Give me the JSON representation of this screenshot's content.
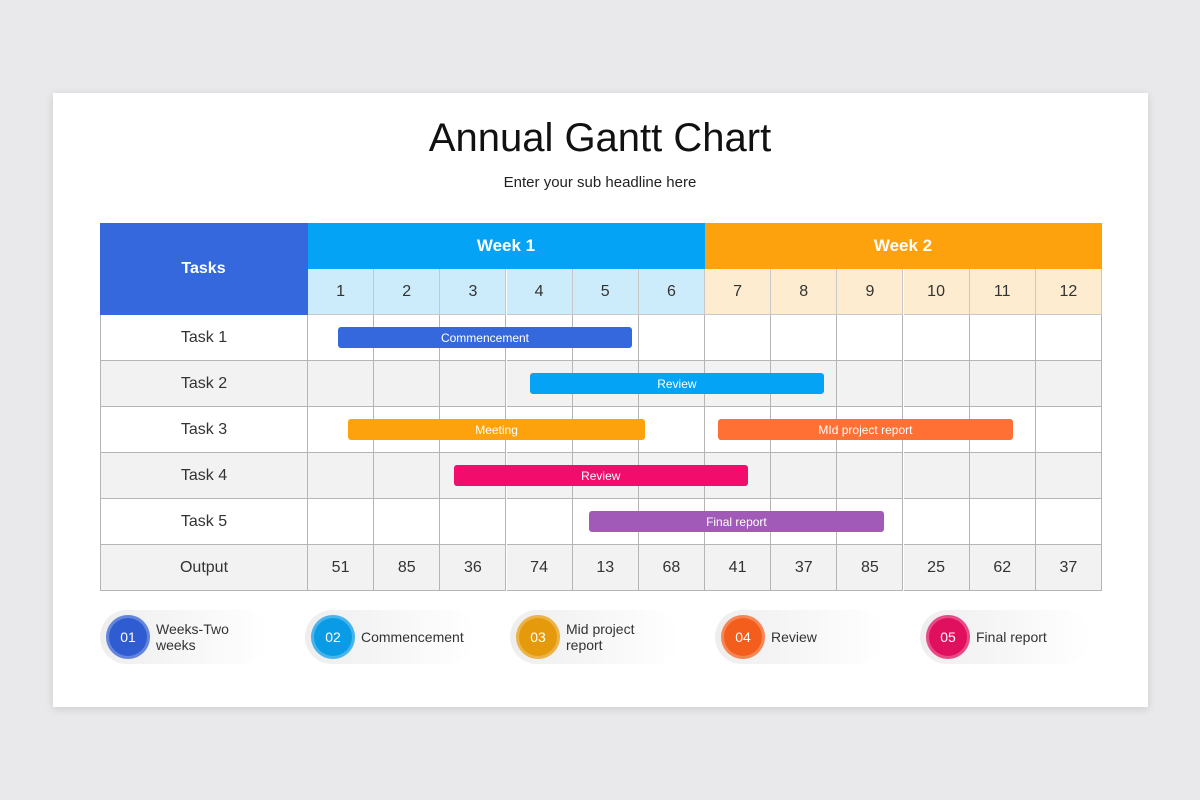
{
  "title": "Annual Gantt Chart",
  "subtitle": "Enter your sub headline here",
  "chart_data": {
    "type": "gantt",
    "tasks_header": "Tasks",
    "weeks": [
      {
        "label": "Week 1",
        "color": "#04a3f5",
        "days_color": "#cdecfb"
      },
      {
        "label": "Week 2",
        "color": "#fda20c",
        "days_color": "#fdecd0"
      }
    ],
    "columns": [
      "1",
      "2",
      "3",
      "4",
      "5",
      "6",
      "7",
      "8",
      "9",
      "10",
      "11",
      "12"
    ],
    "rows": [
      "Task 1",
      "Task 2",
      "Task 3",
      "Task 4",
      "Task 5"
    ],
    "bars": [
      {
        "row": 0,
        "label": "Commencement",
        "start": 0.45,
        "end": 4.9,
        "color": "#3568dd"
      },
      {
        "row": 1,
        "label": "Review",
        "start": 3.35,
        "end": 7.8,
        "color": "#04a3f5"
      },
      {
        "row": 2,
        "label": "Meeting",
        "start": 0.6,
        "end": 5.1,
        "color": "#fda20c"
      },
      {
        "row": 2,
        "label": "MId project report",
        "start": 6.2,
        "end": 10.65,
        "color": "#fe7034"
      },
      {
        "row": 3,
        "label": "Review",
        "start": 2.2,
        "end": 6.65,
        "color": "#f20c6b"
      },
      {
        "row": 4,
        "label": "Final report",
        "start": 4.25,
        "end": 8.7,
        "color": "#a25ab8"
      }
    ],
    "output_label": "Output",
    "output": [
      "51",
      "85",
      "36",
      "74",
      "13",
      "68",
      "41",
      "37",
      "85",
      "25",
      "62",
      "37"
    ],
    "tasks_header_color": "#3568dd"
  },
  "legend": [
    {
      "num": "01",
      "label": "Weeks-Two weeks",
      "color": "#2f5cd0"
    },
    {
      "num": "02",
      "label": "Commencement",
      "color": "#0a9be6"
    },
    {
      "num": "03",
      "label": "Mid project report",
      "color": "#e59a0b"
    },
    {
      "num": "04",
      "label": "Review",
      "color": "#f45e1c"
    },
    {
      "num": "05",
      "label": "Final report",
      "color": "#e0105f"
    }
  ]
}
